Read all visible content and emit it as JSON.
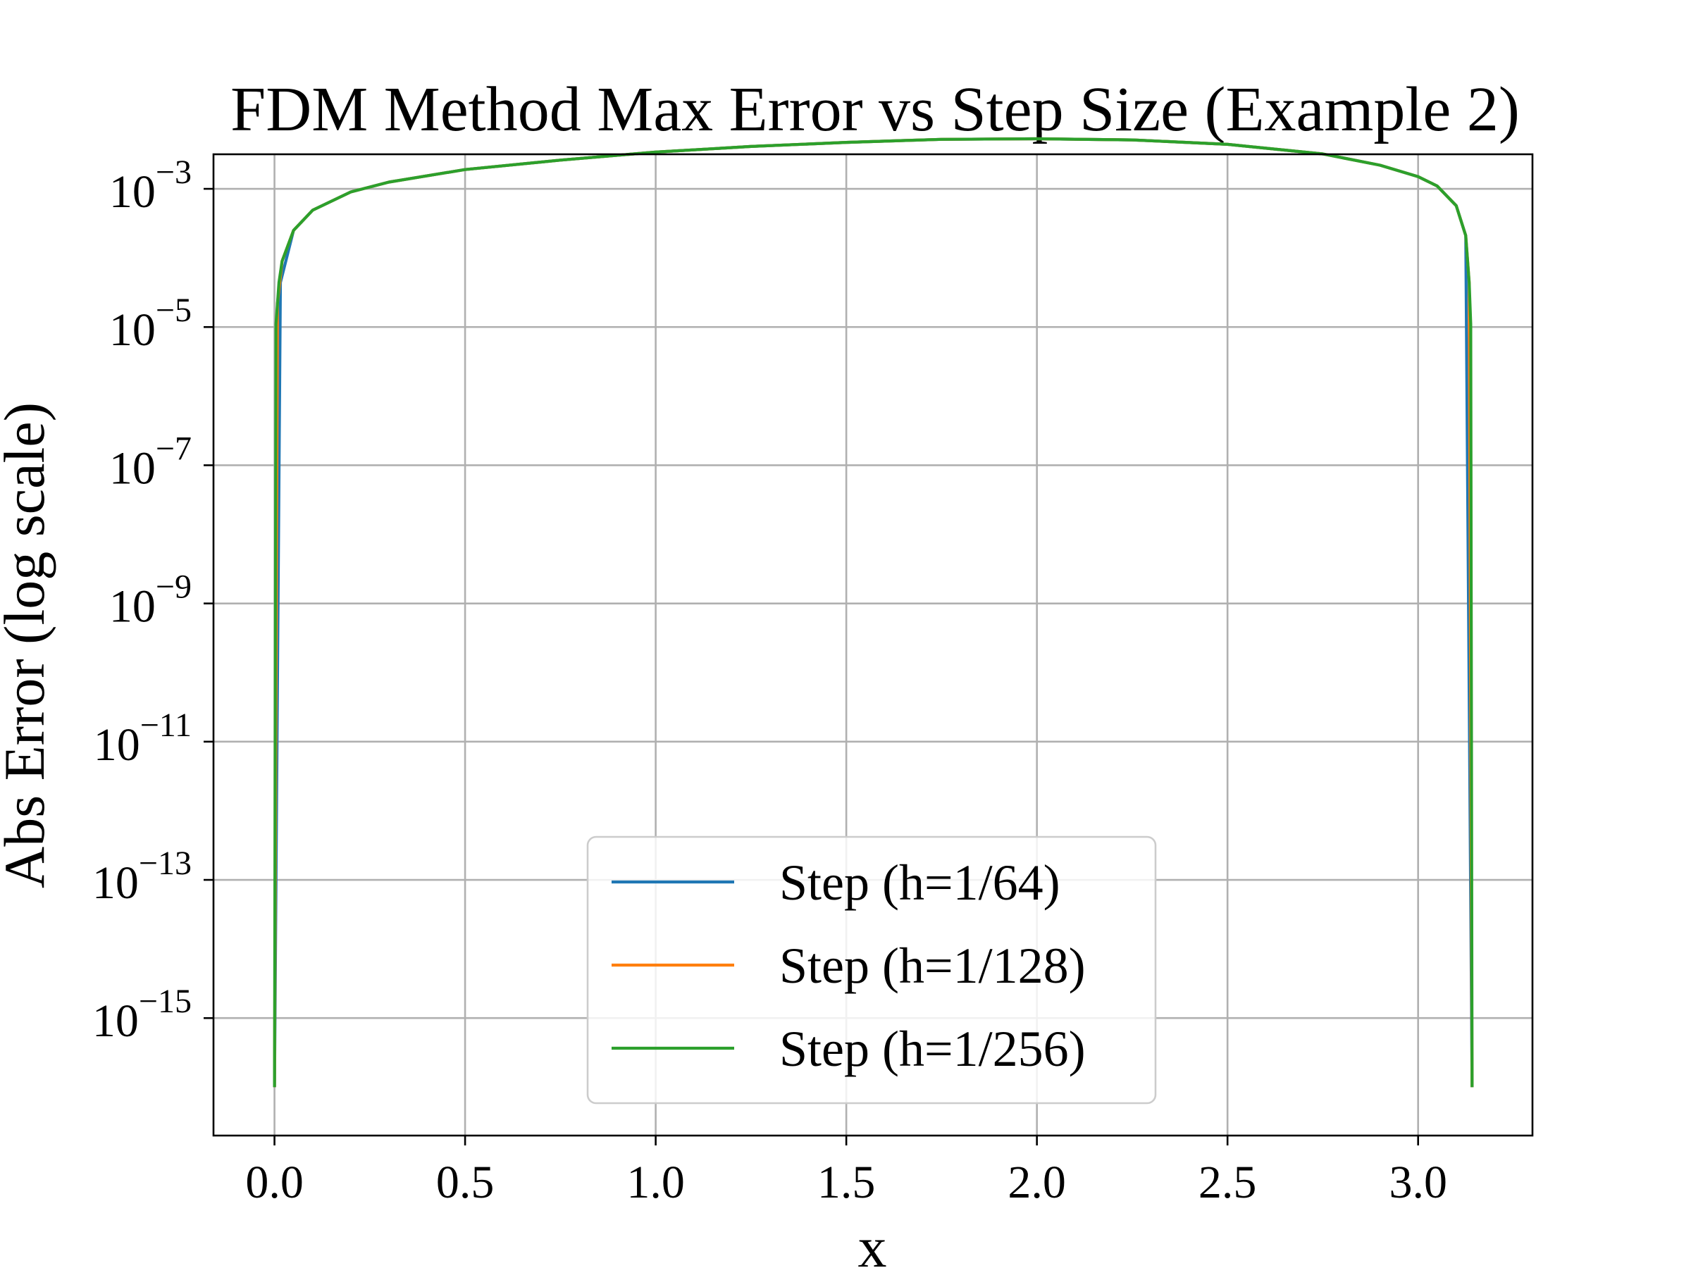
{
  "chart_data": {
    "type": "line",
    "title": "FDM Method Max Error vs Step Size (Example 2)",
    "xlabel": "x",
    "ylabel": "Abs Error (log scale)",
    "xlim": [
      -0.16,
      3.3
    ],
    "ylim_log10": [
      -16.7,
      -2.5
    ],
    "yscale": "log",
    "grid": true,
    "legend_position": "lower-center",
    "x_ticks": [
      {
        "value": 0.0,
        "label": "0.0"
      },
      {
        "value": 0.5,
        "label": "0.5"
      },
      {
        "value": 1.0,
        "label": "1.0"
      },
      {
        "value": 1.5,
        "label": "1.5"
      },
      {
        "value": 2.0,
        "label": "2.0"
      },
      {
        "value": 2.5,
        "label": "2.5"
      },
      {
        "value": 3.0,
        "label": "3.0"
      }
    ],
    "y_ticks": [
      {
        "exp": -3,
        "base": "10",
        "sup": "−3"
      },
      {
        "exp": -5,
        "base": "10",
        "sup": "−5"
      },
      {
        "exp": -7,
        "base": "10",
        "sup": "−7"
      },
      {
        "exp": -9,
        "base": "10",
        "sup": "−9"
      },
      {
        "exp": -11,
        "base": "10",
        "sup": "−11"
      },
      {
        "exp": -13,
        "base": "10",
        "sup": "−13"
      },
      {
        "exp": -15,
        "base": "10",
        "sup": "−15"
      }
    ],
    "series": [
      {
        "name": "Step (h=1/64)",
        "color": "#1f77b4",
        "x": [
          0.0,
          0.0156,
          0.05,
          0.1,
          0.2,
          0.3,
          0.5,
          0.75,
          1.0,
          1.25,
          1.5,
          1.75,
          2.0,
          2.25,
          2.5,
          2.75,
          2.9,
          3.0,
          3.05,
          3.1,
          3.125,
          3.14159
        ],
        "y": [
          1e-16,
          4.4e-05,
          0.00025,
          0.00049,
          0.0009,
          0.00125,
          0.0019,
          0.0026,
          0.0034,
          0.0041,
          0.0047,
          0.0052,
          0.0053,
          0.0051,
          0.0044,
          0.0032,
          0.0022,
          0.0015,
          0.0011,
          0.00057,
          0.00021,
          1e-16
        ]
      },
      {
        "name": "Step (h=1/128)",
        "color": "#ff7f0e",
        "x": [
          0.0,
          0.0078,
          0.02,
          0.05,
          0.1,
          0.2,
          0.3,
          0.5,
          0.75,
          1.0,
          1.25,
          1.5,
          1.75,
          2.0,
          2.25,
          2.5,
          2.75,
          2.9,
          3.0,
          3.05,
          3.1,
          3.125,
          3.134,
          3.14159
        ],
        "y": [
          1e-16,
          2.2e-05,
          9e-05,
          0.00025,
          0.00049,
          0.0009,
          0.00125,
          0.0019,
          0.0026,
          0.0034,
          0.0041,
          0.0047,
          0.0052,
          0.0053,
          0.0051,
          0.0044,
          0.0032,
          0.0022,
          0.0015,
          0.0011,
          0.00057,
          0.00021,
          4.4e-05,
          1e-16
        ]
      },
      {
        "name": "Step (h=1/256)",
        "color": "#2ca02c",
        "x": [
          0.0,
          0.0039,
          0.0117,
          0.02,
          0.05,
          0.1,
          0.2,
          0.3,
          0.5,
          0.75,
          1.0,
          1.25,
          1.5,
          1.75,
          2.0,
          2.25,
          2.5,
          2.75,
          2.9,
          3.0,
          3.05,
          3.1,
          3.125,
          3.134,
          3.138,
          3.14159
        ],
        "y": [
          1e-16,
          1.1e-05,
          4.4e-05,
          9e-05,
          0.00025,
          0.00049,
          0.0009,
          0.00125,
          0.0019,
          0.0026,
          0.0034,
          0.0041,
          0.0047,
          0.0052,
          0.0053,
          0.0051,
          0.0044,
          0.0032,
          0.0022,
          0.0015,
          0.0011,
          0.00057,
          0.00021,
          4.4e-05,
          1.1e-05,
          1e-16
        ]
      }
    ]
  }
}
